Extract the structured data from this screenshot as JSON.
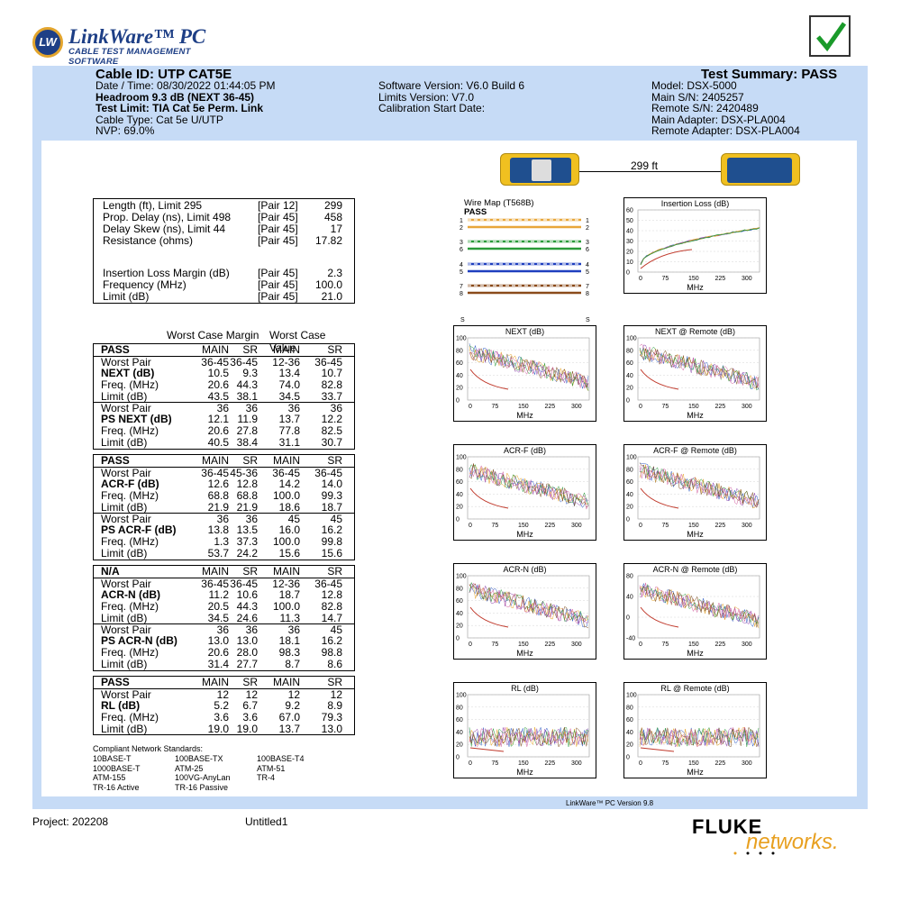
{
  "header": {
    "brand": "LinkWare™ PC",
    "brand_sub": "CABLE TEST MANAGEMENT SOFTWARE",
    "badge": "LW",
    "cable_id": "Cable ID: UTP CAT5E",
    "summary": "Test Summary: PASS",
    "left": [
      {
        "text": "Date / Time: 08/30/2022  01:44:05 PM",
        "bold": false
      },
      {
        "text": "Headroom 9.3 dB (NEXT 36-45)",
        "bold": true
      },
      {
        "text": "Test Limit: TIA Cat 5e Perm. Link",
        "bold": true
      },
      {
        "text": "Cable Type: Cat 5e U/UTP",
        "bold": false
      },
      {
        "text": "NVP: 69.0%",
        "bold": false
      }
    ],
    "mid": [
      "Software Version: V6.0 Build 6",
      "Limits Version: V7.0",
      "Calibration Start Date:"
    ],
    "right": [
      "Model: DSX-5000",
      "Main S/N: 2405257",
      "Remote S/N: 2420489",
      "Main Adapter: DSX-PLA004",
      "Remote Adapter: DSX-PLA004"
    ]
  },
  "link": {
    "length_label": "299 ft"
  },
  "length_table": [
    {
      "label": "Length (ft), Limit 295",
      "pair": "[Pair 12]",
      "value": "299"
    },
    {
      "label": "Prop. Delay (ns), Limit 498",
      "pair": "[Pair 45]",
      "value": "458"
    },
    {
      "label": "Delay Skew (ns), Limit 44",
      "pair": "[Pair 45]",
      "value": "17"
    },
    {
      "label": "Resistance (ohms)",
      "pair": "[Pair 45]",
      "value": "17.82"
    },
    {
      "label": "Insertion Loss Margin (dB)",
      "pair": "[Pair 45]",
      "value": "2.3"
    },
    {
      "label": "Frequency (MHz)",
      "pair": "[Pair 45]",
      "value": "100.0"
    },
    {
      "label": "Limit (dB)",
      "pair": "[Pair 45]",
      "value": "21.0"
    }
  ],
  "worst_case_heads": {
    "margin": "Worst Case Margin",
    "value": "Worst Case Value"
  },
  "tables": [
    {
      "status": "PASS",
      "cols": [
        "MAIN",
        "SR",
        "MAIN",
        "SR"
      ],
      "blocks": [
        {
          "name": "NEXT (dB)",
          "rows": [
            [
              "Worst Pair",
              "36-45",
              "36-45",
              "12-36",
              "36-45"
            ],
            [
              "NEXT (dB)",
              "10.5",
              "9.3",
              "13.4",
              "10.7"
            ],
            [
              "Freq. (MHz)",
              "20.6",
              "44.3",
              "74.0",
              "82.8"
            ],
            [
              "Limit (dB)",
              "43.5",
              "38.1",
              "34.5",
              "33.7"
            ]
          ]
        },
        {
          "name": "PS NEXT (dB)",
          "rows": [
            [
              "Worst Pair",
              "36",
              "36",
              "36",
              "36"
            ],
            [
              "PS NEXT (dB)",
              "12.1",
              "11.9",
              "13.7",
              "12.2"
            ],
            [
              "Freq. (MHz)",
              "20.6",
              "27.8",
              "77.8",
              "82.5"
            ],
            [
              "Limit (dB)",
              "40.5",
              "38.4",
              "31.1",
              "30.7"
            ]
          ]
        }
      ]
    },
    {
      "status": "PASS",
      "cols": [
        "MAIN",
        "SR",
        "MAIN",
        "SR"
      ],
      "blocks": [
        {
          "name": "ACR-F (dB)",
          "rows": [
            [
              "Worst Pair",
              "36-45",
              "45-36",
              "36-45",
              "36-45"
            ],
            [
              "ACR-F (dB)",
              "12.6",
              "12.8",
              "14.2",
              "14.0"
            ],
            [
              "Freq. (MHz)",
              "68.8",
              "68.8",
              "100.0",
              "99.3"
            ],
            [
              "Limit (dB)",
              "21.9",
              "21.9",
              "18.6",
              "18.7"
            ]
          ]
        },
        {
          "name": "PS ACR-F (dB)",
          "rows": [
            [
              "Worst Pair",
              "36",
              "36",
              "45",
              "45"
            ],
            [
              "PS ACR-F (dB)",
              "13.8",
              "13.5",
              "16.0",
              "16.2"
            ],
            [
              "Freq. (MHz)",
              "1.3",
              "37.3",
              "100.0",
              "99.8"
            ],
            [
              "Limit (dB)",
              "53.7",
              "24.2",
              "15.6",
              "15.6"
            ]
          ]
        }
      ]
    },
    {
      "status": "N/A",
      "cols": [
        "MAIN",
        "SR",
        "MAIN",
        "SR"
      ],
      "blocks": [
        {
          "name": "ACR-N (dB)",
          "rows": [
            [
              "Worst Pair",
              "36-45",
              "36-45",
              "12-36",
              "36-45"
            ],
            [
              "ACR-N (dB)",
              "11.2",
              "10.6",
              "18.7",
              "12.8"
            ],
            [
              "Freq. (MHz)",
              "20.5",
              "44.3",
              "100.0",
              "82.8"
            ],
            [
              "Limit (dB)",
              "34.5",
              "24.6",
              "11.3",
              "14.7"
            ]
          ]
        },
        {
          "name": "PS ACR-N (dB)",
          "rows": [
            [
              "Worst Pair",
              "36",
              "36",
              "36",
              "45"
            ],
            [
              "PS ACR-N (dB)",
              "13.0",
              "13.0",
              "18.1",
              "16.2"
            ],
            [
              "Freq. (MHz)",
              "20.6",
              "28.0",
              "98.3",
              "98.8"
            ],
            [
              "Limit (dB)",
              "31.4",
              "27.7",
              "8.7",
              "8.6"
            ]
          ]
        }
      ]
    },
    {
      "status": "PASS",
      "cols": [
        "MAIN",
        "SR",
        "MAIN",
        "SR"
      ],
      "blocks": [
        {
          "name": "RL (dB)",
          "rows": [
            [
              "Worst Pair",
              "12",
              "12",
              "12",
              "12"
            ],
            [
              "RL (dB)",
              "5.2",
              "6.7",
              "9.2",
              "8.9"
            ],
            [
              "Freq. (MHz)",
              "3.6",
              "3.6",
              "67.0",
              "79.3"
            ],
            [
              "Limit (dB)",
              "19.0",
              "19.0",
              "13.7",
              "13.0"
            ]
          ]
        }
      ]
    }
  ],
  "standards": {
    "title": "Compliant Network Standards:",
    "col1": [
      "10BASE-T",
      "1000BASE-T",
      "ATM-155",
      "TR-16 Active"
    ],
    "col2": [
      "100BASE-TX",
      "ATM-25",
      "100VG-AnyLan",
      "TR-16 Passive"
    ],
    "col3": [
      "100BASE-T4",
      "ATM-51",
      "TR-4"
    ]
  },
  "wiremap": {
    "title": "Wire Map (T568B)",
    "status": "PASS",
    "pins": [
      "1",
      "2",
      "3",
      "6",
      "4",
      "5",
      "7",
      "8"
    ],
    "s_label": "S",
    "colors": [
      "#e8a63a",
      "#e8a63a",
      "#2a9a3a",
      "#2a9a3a",
      "#1f3fbf",
      "#1f3fbf",
      "#8a4a1a",
      "#8a4a1a"
    ]
  },
  "charts": [
    {
      "id": "il",
      "title": "Insertion Loss (dB)",
      "xlabel": "MHz",
      "yticks": [
        "0",
        "10",
        "20",
        "30",
        "40",
        "50",
        "60"
      ],
      "xticks": [
        "0",
        "75",
        "150",
        "225",
        "300"
      ]
    },
    {
      "id": "next",
      "title": "NEXT (dB)",
      "xlabel": "MHz",
      "yticks": [
        "0",
        "20",
        "40",
        "60",
        "80",
        "100"
      ],
      "xticks": [
        "0",
        "75",
        "150",
        "225",
        "300"
      ]
    },
    {
      "id": "next_r",
      "title": "NEXT @ Remote (dB)",
      "xlabel": "MHz",
      "yticks": [
        "0",
        "20",
        "40",
        "60",
        "80",
        "100"
      ],
      "xticks": [
        "0",
        "75",
        "150",
        "225",
        "300"
      ]
    },
    {
      "id": "acrf",
      "title": "ACR-F (dB)",
      "xlabel": "MHz",
      "yticks": [
        "0",
        "20",
        "40",
        "60",
        "80",
        "100"
      ],
      "xticks": [
        "0",
        "75",
        "150",
        "225",
        "300"
      ]
    },
    {
      "id": "acrf_r",
      "title": "ACR-F @ Remote (dB)",
      "xlabel": "MHz",
      "yticks": [
        "0",
        "20",
        "40",
        "60",
        "80",
        "100"
      ],
      "xticks": [
        "0",
        "75",
        "150",
        "225",
        "300"
      ]
    },
    {
      "id": "acrn",
      "title": "ACR-N (dB)",
      "xlabel": "MHz",
      "yticks": [
        "0",
        "20",
        "40",
        "60",
        "80",
        "100"
      ],
      "xticks": [
        "0",
        "75",
        "150",
        "225",
        "300"
      ]
    },
    {
      "id": "acrn_r",
      "title": "ACR-N @ Remote (dB)",
      "xlabel": "MHz",
      "yticks": [
        "-40",
        "0",
        "40",
        "80"
      ],
      "xticks": [
        "0",
        "75",
        "150",
        "225",
        "300"
      ]
    },
    {
      "id": "rl",
      "title": "RL (dB)",
      "xlabel": "MHz",
      "yticks": [
        "0",
        "20",
        "40",
        "60",
        "80",
        "100"
      ],
      "xticks": [
        "0",
        "75",
        "150",
        "225",
        "300"
      ]
    },
    {
      "id": "rl_r",
      "title": "RL @ Remote (dB)",
      "xlabel": "MHz",
      "yticks": [
        "0",
        "20",
        "40",
        "60",
        "80",
        "100"
      ],
      "xticks": [
        "0",
        "75",
        "150",
        "225",
        "300"
      ]
    }
  ],
  "footer": {
    "project": "Project: 202208",
    "file": "Untitled1",
    "version": "LinkWare™ PC Version 9.8",
    "fluke": "FLUKE",
    "networks": "networks."
  }
}
